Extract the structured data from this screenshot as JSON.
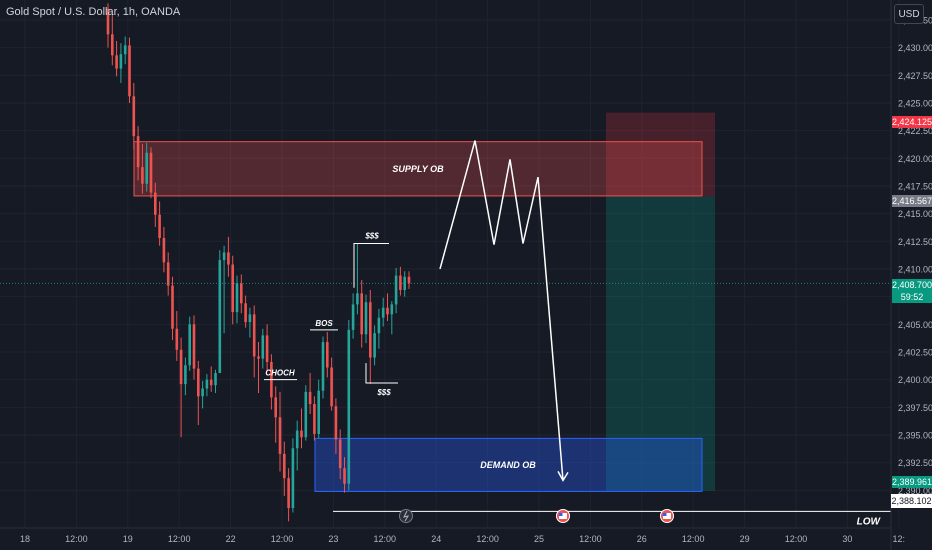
{
  "title": "Gold Spot / U.S. Dollar, 1h, OANDA",
  "currency_button": "USD",
  "price_tags": {
    "stop": "2,424.125",
    "entry": "2,416.567",
    "current_price": "2,408.700",
    "countdown": "59:52",
    "target": "2,389.961",
    "low": "2,388.102"
  },
  "colors": {
    "background": "#161a25",
    "up_candle": "#26a69a",
    "down_candle": "#ef5350",
    "supply_zone": "#ef5350",
    "demand_zone": "#2962ff",
    "stop_zone": "#f23645",
    "target_zone": "#089981",
    "annotation": "#ffffff"
  },
  "chart_data": {
    "type": "candlestick",
    "title": "Gold Spot / U.S. Dollar, 1h, OANDA",
    "y_axis_ticks": [
      "2,432.500",
      "2,430.000",
      "2,427.500",
      "2,425.000",
      "2,422.500",
      "2,420.000",
      "2,417.500",
      "2,415.000",
      "2,412.500",
      "2,410.000",
      "2,407.500",
      "2,405.000",
      "2,402.500",
      "2,400.000",
      "2,397.500",
      "2,395.000",
      "2,392.500",
      "2,390.000"
    ],
    "x_axis_ticks": [
      "18",
      "12:00",
      "19",
      "12:00",
      "22",
      "12:00",
      "23",
      "12:00",
      "24",
      "12:00",
      "25",
      "12:00",
      "26",
      "12:00",
      "29",
      "12:00",
      "30",
      "12:"
    ],
    "ylim": [
      2386.6,
      2434.3
    ],
    "zones": [
      {
        "label": "SUPPLY OB",
        "from": 2416.6,
        "to": 2421.5
      },
      {
        "label": "DEMAND OB",
        "from": 2389.9,
        "to": 2394.7
      }
    ],
    "annotations": [
      "CHOCH",
      "BOS",
      "$$$",
      "$$$",
      "LOW"
    ],
    "position": {
      "side": "short",
      "entry": 2416.567,
      "stop": 2424.125,
      "target": 2389.961
    },
    "projection": [
      2410.0,
      2421.6,
      2412.2,
      2419.9,
      2412.3,
      2418.3,
      2390.9
    ],
    "candles_ohlc": [
      [
        2433.5,
        2434.0,
        2430.0,
        2431.2
      ],
      [
        2431.2,
        2433.0,
        2428.4,
        2429.3
      ],
      [
        2429.3,
        2430.6,
        2427.4,
        2428.1
      ],
      [
        2428.1,
        2430.4,
        2426.8,
        2429.4
      ],
      [
        2429.4,
        2431.0,
        2428.5,
        2430.2
      ],
      [
        2430.2,
        2430.9,
        2425.0,
        2425.6
      ],
      [
        2425.6,
        2426.8,
        2420.8,
        2422.0
      ],
      [
        2422.0,
        2422.9,
        2418.0,
        2419.2
      ],
      [
        2419.2,
        2421.3,
        2416.8,
        2417.7
      ],
      [
        2417.7,
        2421.4,
        2417.0,
        2420.5
      ],
      [
        2420.5,
        2421.0,
        2416.4,
        2416.9
      ],
      [
        2416.9,
        2417.8,
        2413.8,
        2414.9
      ],
      [
        2414.9,
        2416.1,
        2412.1,
        2412.8
      ],
      [
        2412.8,
        2413.8,
        2409.7,
        2410.6
      ],
      [
        2410.6,
        2411.5,
        2407.6,
        2408.5
      ],
      [
        2408.5,
        2409.3,
        2403.6,
        2404.6
      ],
      [
        2404.6,
        2406.2,
        2401.7,
        2402.7
      ],
      [
        2402.7,
        2403.8,
        2394.8,
        2399.6
      ],
      [
        2399.6,
        2402.0,
        2398.6,
        2401.3
      ],
      [
        2401.3,
        2405.7,
        2400.8,
        2405.0
      ],
      [
        2405.0,
        2405.8,
        2400.0,
        2401.0
      ],
      [
        2401.0,
        2401.7,
        2395.9,
        2398.5
      ],
      [
        2398.5,
        2399.9,
        2397.4,
        2399.2
      ],
      [
        2399.2,
        2400.5,
        2398.5,
        2400.0
      ],
      [
        2400.0,
        2401.2,
        2398.9,
        2399.5
      ],
      [
        2399.5,
        2400.9,
        2398.8,
        2400.6
      ],
      [
        2400.6,
        2411.7,
        2403.2,
        2410.8
      ],
      [
        2410.8,
        2412.1,
        2404.2,
        2411.5
      ],
      [
        2411.5,
        2412.9,
        2409.3,
        2410.4
      ],
      [
        2410.4,
        2411.2,
        2405.0,
        2406.1
      ],
      [
        2406.1,
        2409.4,
        2405.1,
        2408.7
      ],
      [
        2408.7,
        2409.5,
        2406.0,
        2406.9
      ],
      [
        2406.9,
        2407.6,
        2404.7,
        2405.2
      ],
      [
        2405.2,
        2406.5,
        2403.8,
        2405.9
      ],
      [
        2405.9,
        2406.7,
        2400.2,
        2402.1
      ],
      [
        2402.1,
        2403.4,
        2398.8,
        2401.9
      ],
      [
        2401.9,
        2404.6,
        2401.0,
        2404.0
      ],
      [
        2404.0,
        2405.0,
        2400.8,
        2401.6
      ],
      [
        2401.6,
        2402.3,
        2397.3,
        2398.4
      ],
      [
        2398.4,
        2399.4,
        2394.3,
        2396.6
      ],
      [
        2396.6,
        2398.9,
        2391.7,
        2393.3
      ],
      [
        2393.3,
        2394.4,
        2389.5,
        2391.1
      ],
      [
        2391.1,
        2392.0,
        2387.2,
        2388.4
      ],
      [
        2388.4,
        2394.7,
        2388.0,
        2393.8
      ],
      [
        2393.8,
        2396.3,
        2391.8,
        2395.4
      ],
      [
        2395.4,
        2397.4,
        2393.8,
        2394.8
      ],
      [
        2394.8,
        2399.5,
        2394.5,
        2398.9
      ],
      [
        2398.9,
        2400.6,
        2396.9,
        2397.8
      ],
      [
        2397.8,
        2398.5,
        2394.5,
        2395.1
      ],
      [
        2395.1,
        2400.0,
        2394.7,
        2399.0
      ],
      [
        2399.0,
        2403.9,
        2398.3,
        2403.4
      ],
      [
        2403.4,
        2404.3,
        2400.2,
        2401.1
      ],
      [
        2401.1,
        2402.0,
        2397.2,
        2397.6
      ],
      [
        2397.6,
        2398.3,
        2393.3,
        2394.6
      ],
      [
        2394.6,
        2395.5,
        2391.0,
        2392.0
      ],
      [
        2392.0,
        2393.0,
        2389.8,
        2390.6
      ],
      [
        2390.6,
        2405.4,
        2390.0,
        2404.5
      ],
      [
        2404.5,
        2407.8,
        2403.7,
        2406.8
      ],
      [
        2406.8,
        2412.3,
        2405.9,
        2407.8
      ],
      [
        2407.8,
        2409.0,
        2402.9,
        2404.1
      ],
      [
        2404.1,
        2407.7,
        2403.3,
        2407.0
      ],
      [
        2407.0,
        2408.1,
        2399.6,
        2402.0
      ],
      [
        2402.0,
        2404.9,
        2401.3,
        2404.2
      ],
      [
        2404.2,
        2406.4,
        2402.8,
        2405.6
      ],
      [
        2405.6,
        2407.4,
        2404.8,
        2406.5
      ],
      [
        2406.5,
        2407.8,
        2405.3,
        2405.9
      ],
      [
        2405.9,
        2407.1,
        2404.1,
        2406.8
      ],
      [
        2406.8,
        2410.1,
        2406.0,
        2409.4
      ],
      [
        2409.4,
        2410.2,
        2407.6,
        2408.1
      ],
      [
        2408.1,
        2409.8,
        2407.5,
        2409.3
      ],
      [
        2409.3,
        2409.8,
        2408.2,
        2408.7
      ]
    ]
  }
}
